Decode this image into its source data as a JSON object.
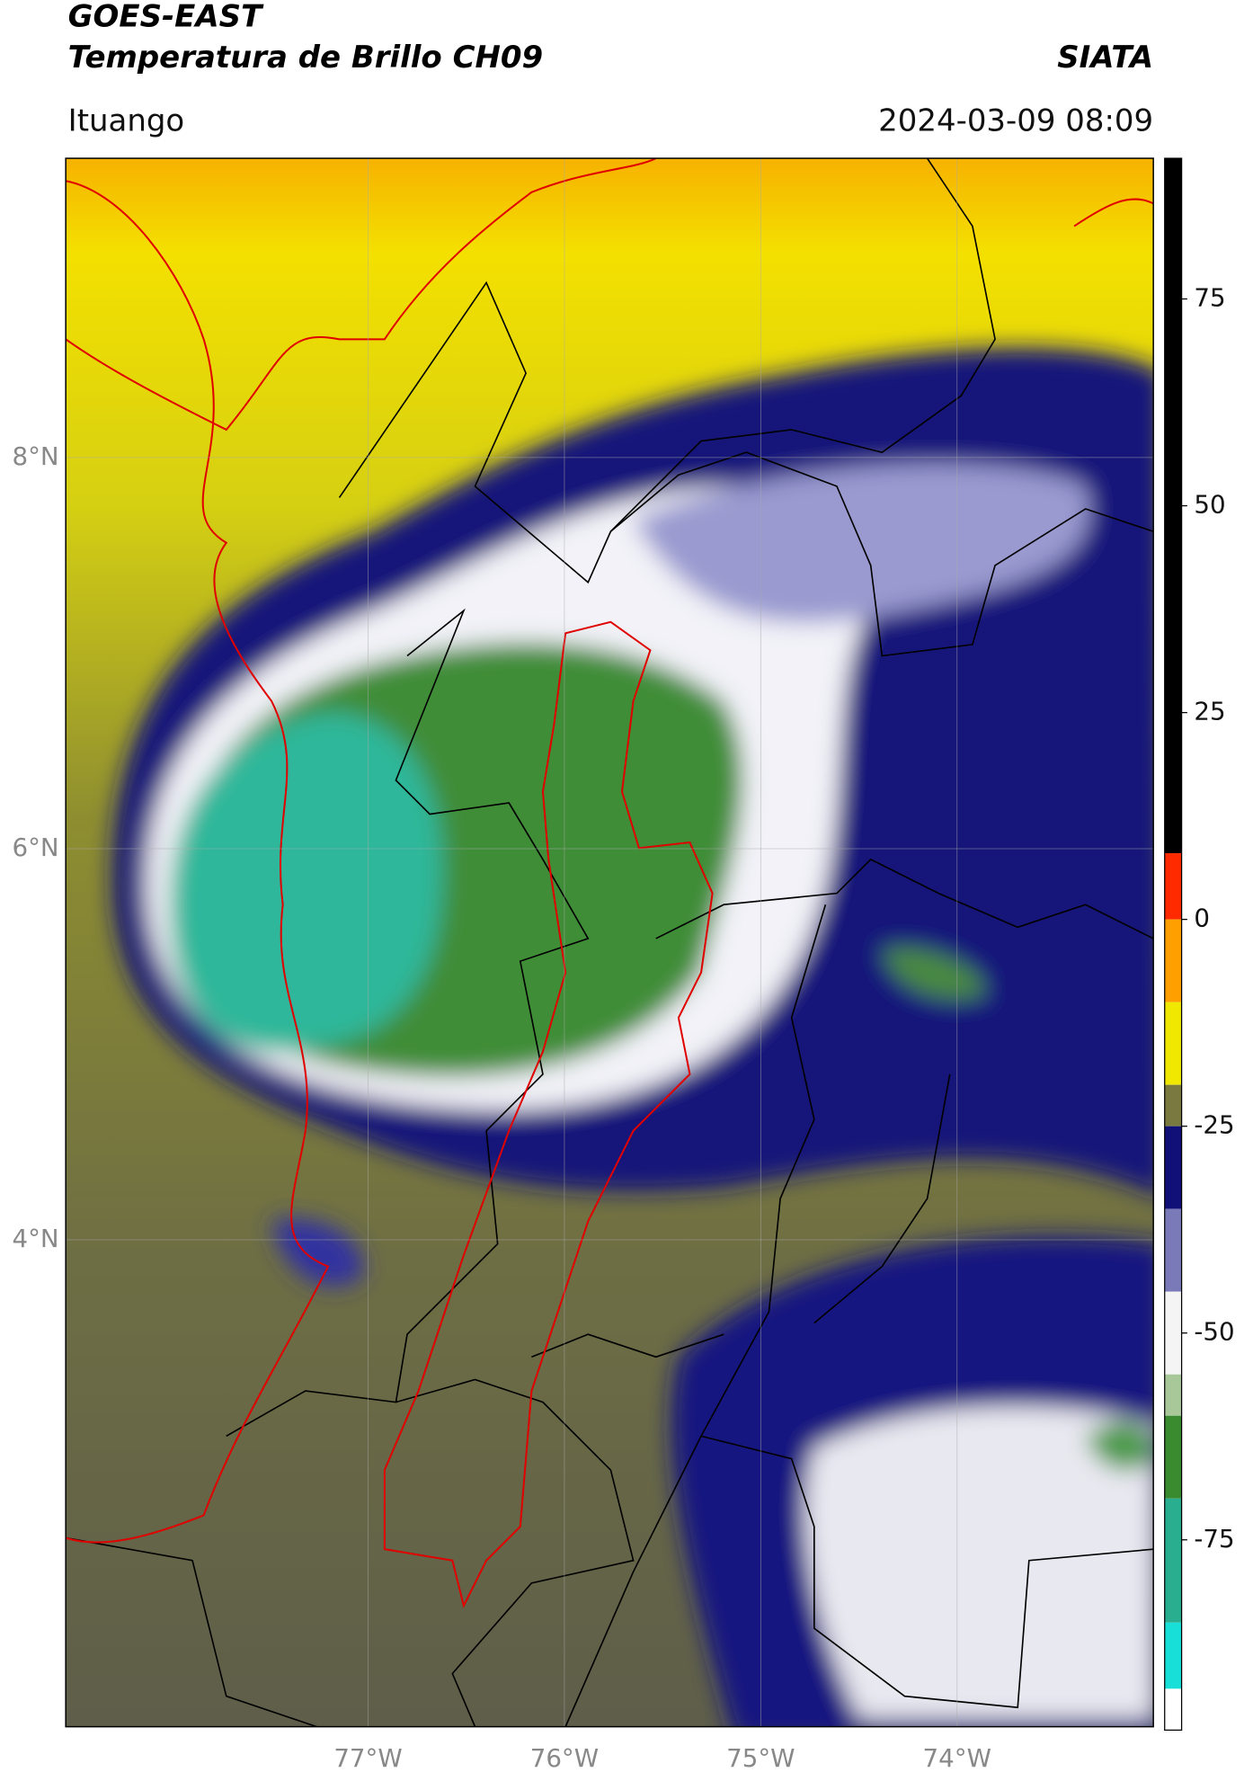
{
  "header": {
    "title_line1": "GOES-EAST",
    "title_line2": "Temperatura de Brillo CH09",
    "brand": "SIATA",
    "location": "Ituango",
    "datetime": "2024-03-09 08:09"
  },
  "map": {
    "xlim": [
      -78.54,
      -73.0
    ],
    "ylim": [
      1.51,
      9.53
    ],
    "lon_ticks": [
      {
        "value": -77,
        "label": "77°W"
      },
      {
        "value": -76,
        "label": "76°W"
      },
      {
        "value": -75,
        "label": "75°W"
      },
      {
        "value": -74,
        "label": "74°W"
      }
    ],
    "lat_ticks": [
      {
        "value": 8,
        "label": "8°N"
      },
      {
        "value": 6,
        "label": "6°N"
      },
      {
        "value": 4,
        "label": "4°N"
      }
    ],
    "grid": true
  },
  "colorbar": {
    "lim": [
      -98,
      92
    ],
    "ticks": [
      75,
      50,
      25,
      0,
      -25,
      -50,
      -75
    ],
    "segments": [
      {
        "from": 8,
        "to": 92,
        "color": "#000000"
      },
      {
        "from": 0,
        "to": 8,
        "color": "#ff2a00"
      },
      {
        "from": -10,
        "to": 0,
        "color": "#ffa000"
      },
      {
        "from": -20,
        "to": -10,
        "color": "#f0e800"
      },
      {
        "from": -25,
        "to": -20,
        "color": "#7a7a40"
      },
      {
        "from": -35,
        "to": -25,
        "color": "#101078"
      },
      {
        "from": -45,
        "to": -35,
        "color": "#7a7ab8"
      },
      {
        "from": -55,
        "to": -45,
        "color": "#f4f4f4"
      },
      {
        "from": -60,
        "to": -55,
        "color": "#a8c89a"
      },
      {
        "from": -70,
        "to": -60,
        "color": "#3a8a30"
      },
      {
        "from": -85,
        "to": -70,
        "color": "#2aae90"
      },
      {
        "from": -93,
        "to": -85,
        "color": "#18e0d8"
      },
      {
        "from": -98,
        "to": -93,
        "color": "#ffffff"
      }
    ]
  }
}
